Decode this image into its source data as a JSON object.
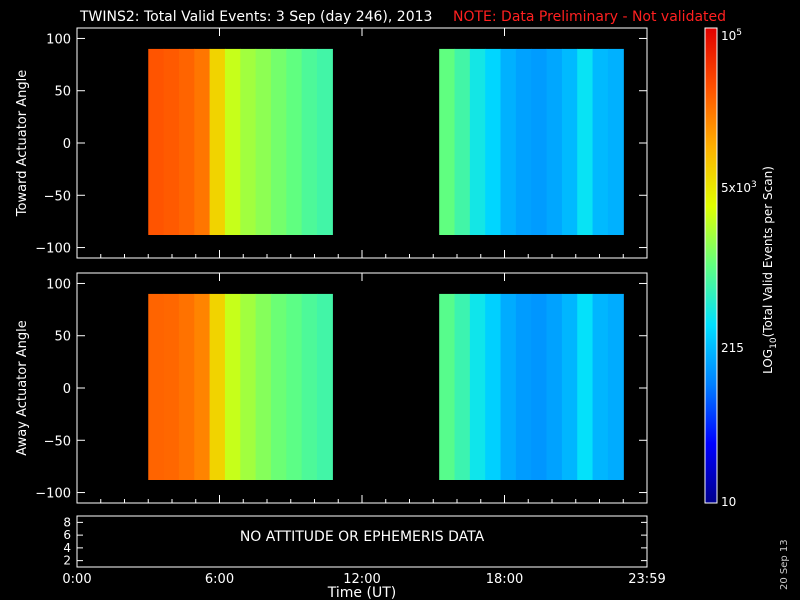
{
  "header": {
    "title": "TWINS2: Total Valid Events:  3 Sep (day 246), 2013",
    "note": "NOTE: Data Preliminary - Not validated",
    "note_color": "#ff2020"
  },
  "footer": {
    "xlabel": "Time (UT)",
    "stamp": "20 Sep 13"
  },
  "bottom_panel": {
    "message": "NO ATTITUDE OR EPHEMERIS DATA"
  },
  "colorbar": {
    "title": "LOG10(Total Valid Events per Scan)",
    "scale": "log",
    "range": [
      10,
      100000
    ],
    "colormap": [
      "#00008c",
      "#0000ff",
      "#0080ff",
      "#00e0ff",
      "#60ff80",
      "#e0ff00",
      "#ffb000",
      "#ff5000",
      "#e00000"
    ],
    "tick_labels": [
      "10",
      "215",
      "5x10^3",
      "10^5"
    ]
  },
  "chart_data": [
    {
      "type": "heatmap",
      "ylabel": "Toward Actuator Angle",
      "ylim": [
        -110,
        110
      ],
      "yticks": [
        -100,
        -50,
        0,
        50,
        100
      ],
      "xticks": [
        "0:00",
        "6:00",
        "12:00",
        "18:00",
        "23:59"
      ],
      "xlim_hours": [
        0,
        24
      ],
      "angle_range": [
        -88,
        90
      ],
      "blocks": [
        {
          "time_start": "3:00",
          "time_end": "10:45",
          "time_profile_events": [
            30000,
            28000,
            25000,
            20000,
            6000,
            2500,
            1800,
            1500,
            1200,
            1000,
            800,
            700
          ]
        },
        {
          "time_start": "15:15",
          "time_end": "23:00",
          "time_profile_events": [
            1000,
            700,
            400,
            280,
            180,
            150,
            140,
            160,
            200,
            350,
            200,
            180
          ]
        }
      ]
    },
    {
      "type": "heatmap",
      "ylabel": "Away Actuator Angle",
      "ylim": [
        -110,
        110
      ],
      "yticks": [
        -100,
        -50,
        0,
        50,
        100
      ],
      "xticks": [
        "0:00",
        "6:00",
        "12:00",
        "18:00",
        "23:59"
      ],
      "xlim_hours": [
        0,
        24
      ],
      "angle_range": [
        -88,
        90
      ],
      "blocks": [
        {
          "time_start": "3:00",
          "time_end": "10:45",
          "time_profile_events": [
            25000,
            24000,
            21000,
            17000,
            6000,
            2500,
            1800,
            1400,
            1100,
            950,
            800,
            700
          ]
        },
        {
          "time_start": "15:15",
          "time_end": "23:00",
          "time_profile_events": [
            900,
            650,
            380,
            260,
            170,
            140,
            130,
            150,
            190,
            330,
            190,
            170
          ]
        }
      ]
    },
    {
      "type": "line",
      "yticks": [
        2,
        4,
        6,
        8
      ],
      "ylim": [
        1,
        9
      ],
      "series": []
    }
  ]
}
